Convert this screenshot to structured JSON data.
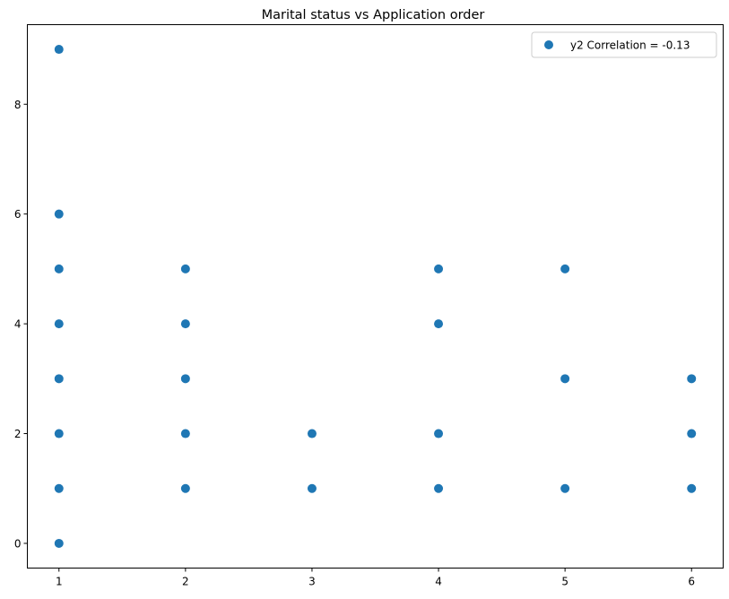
{
  "chart_data": {
    "type": "scatter",
    "title": "Marital status vs Application order",
    "xlabel": "",
    "ylabel": "",
    "xlim": [
      0.75,
      6.25
    ],
    "ylim": [
      -0.45,
      9.45
    ],
    "xticks": [
      1,
      2,
      3,
      4,
      5,
      6
    ],
    "yticks": [
      0,
      2,
      4,
      6,
      8
    ],
    "grid": false,
    "legend_position": "top-right",
    "color": "#1f77b4",
    "series": [
      {
        "name": "y2 Correlation = -0.13",
        "points": [
          {
            "x": 1,
            "y": 0
          },
          {
            "x": 1,
            "y": 1
          },
          {
            "x": 1,
            "y": 2
          },
          {
            "x": 1,
            "y": 3
          },
          {
            "x": 1,
            "y": 4
          },
          {
            "x": 1,
            "y": 5
          },
          {
            "x": 1,
            "y": 6
          },
          {
            "x": 1,
            "y": 9
          },
          {
            "x": 2,
            "y": 1
          },
          {
            "x": 2,
            "y": 2
          },
          {
            "x": 2,
            "y": 3
          },
          {
            "x": 2,
            "y": 4
          },
          {
            "x": 2,
            "y": 5
          },
          {
            "x": 3,
            "y": 1
          },
          {
            "x": 3,
            "y": 2
          },
          {
            "x": 4,
            "y": 1
          },
          {
            "x": 4,
            "y": 2
          },
          {
            "x": 4,
            "y": 4
          },
          {
            "x": 4,
            "y": 5
          },
          {
            "x": 5,
            "y": 1
          },
          {
            "x": 5,
            "y": 3
          },
          {
            "x": 5,
            "y": 5
          },
          {
            "x": 6,
            "y": 1
          },
          {
            "x": 6,
            "y": 2
          },
          {
            "x": 6,
            "y": 3
          }
        ]
      }
    ]
  }
}
